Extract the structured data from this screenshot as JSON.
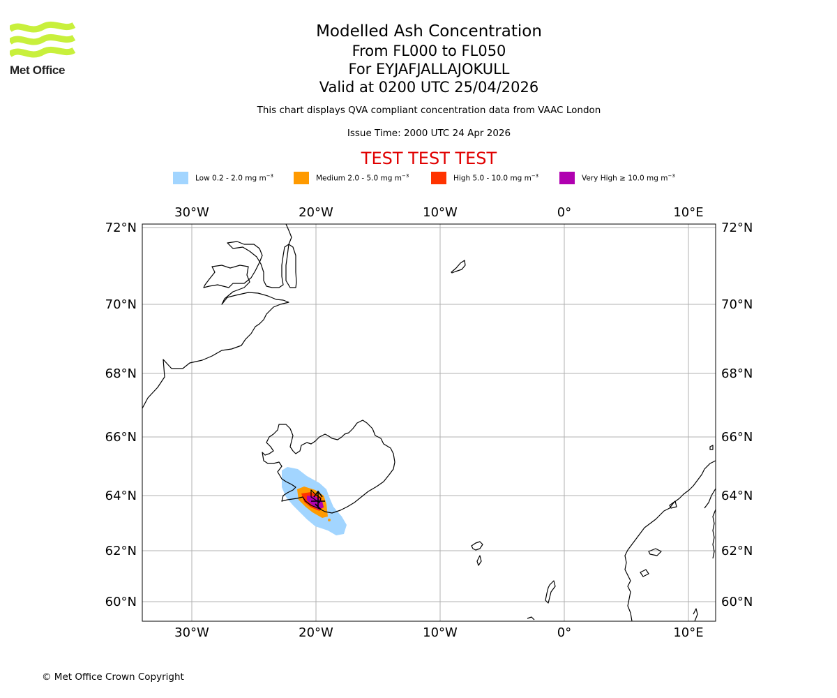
{
  "logo": {
    "name": "Met Office"
  },
  "title": {
    "line1": "Modelled Ash Concentration",
    "line2": "From FL000 to FL050",
    "line3": "For EYJAFJALLAJOKULL",
    "line4": "Valid at 0200 UTC 25/04/2026"
  },
  "subtitle": "This chart displays QVA compliant concentration data from VAAC London",
  "issue_time": "Issue Time: 2000 UTC 24 Apr 2026",
  "test_banner": "TEST TEST TEST",
  "legend": [
    {
      "label": "Low 0.2 - 2.0 mg m",
      "exp": "−3",
      "color": "#a2d5ff"
    },
    {
      "label": "Medium 2.0 - 5.0 mg m",
      "exp": "−3",
      "color": "#ff9a00"
    },
    {
      "label": "High 5.0 - 10.0 mg m",
      "exp": "−3",
      "color": "#ff3300"
    },
    {
      "label": "Very High ≥ 10.0 mg m",
      "exp": "−3",
      "color": "#b000b0"
    }
  ],
  "axes": {
    "lon_labels": [
      "30°W",
      "20°W",
      "10°W",
      "0°",
      "10°E"
    ],
    "lat_labels": [
      "72°N",
      "70°N",
      "68°N",
      "66°N",
      "64°N",
      "62°N",
      "60°N"
    ]
  },
  "copyright": "© Met Office Crown Copyright",
  "colors": {
    "logo_green": "#c8f03c",
    "banner_red": "#e00000",
    "grid": "#b0b0b0"
  }
}
